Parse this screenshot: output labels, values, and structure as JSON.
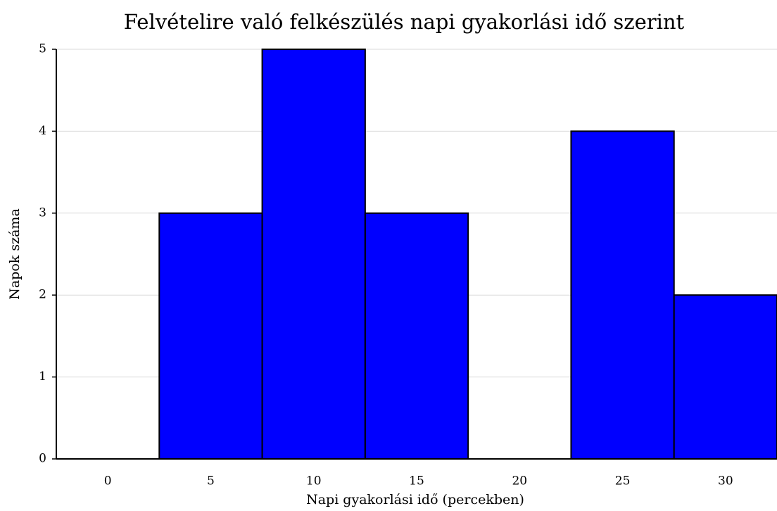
{
  "chart_data": {
    "type": "histogram",
    "title": "Felvételire való felkészülés napi gyakorlási idő szerint",
    "xlabel": "Napi gyakorlási idő (percekben)",
    "ylabel": "Napok száma",
    "bins": [
      -2.5,
      2.5,
      7.5,
      12.5,
      17.5,
      22.5,
      27.5,
      32.5
    ],
    "values": [
      0,
      3,
      5,
      3,
      0,
      4,
      2
    ],
    "color": "#0000ff",
    "xlim": [
      -2.5,
      32.5
    ],
    "xticks": [
      0,
      5,
      10,
      15,
      20,
      25,
      30
    ],
    "ylim": [
      0,
      5
    ],
    "yticks": [
      0,
      1,
      2,
      3,
      4,
      5
    ],
    "grid": true
  }
}
